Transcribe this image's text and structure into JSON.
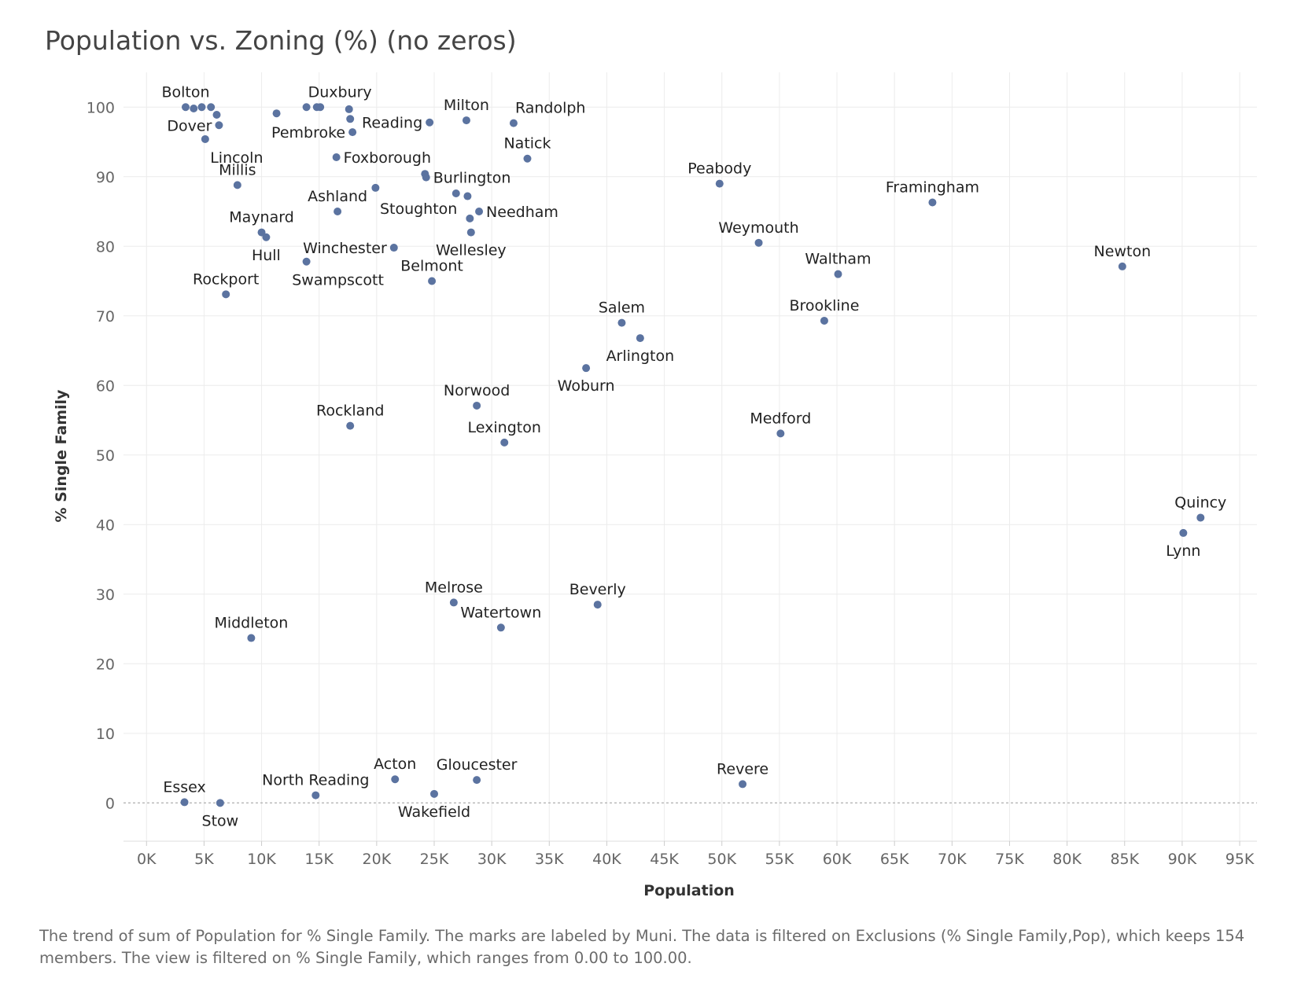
{
  "chart_data": {
    "type": "scatter",
    "title": "Population vs. Zoning (%) (no zeros)",
    "xlabel": "Population",
    "ylabel": "% Single Family",
    "xlim": [
      -2000,
      96500
    ],
    "ylim": [
      -5.5,
      105
    ],
    "x_ticks": [
      0,
      5000,
      10000,
      15000,
      20000,
      25000,
      30000,
      35000,
      40000,
      45000,
      50000,
      55000,
      60000,
      65000,
      70000,
      75000,
      80000,
      85000,
      90000,
      95000
    ],
    "x_tick_labels": [
      "0K",
      "5K",
      "10K",
      "15K",
      "20K",
      "25K",
      "30K",
      "35K",
      "40K",
      "45K",
      "50K",
      "55K",
      "60K",
      "65K",
      "70K",
      "75K",
      "80K",
      "85K",
      "90K",
      "95K"
    ],
    "y_ticks": [
      0,
      10,
      20,
      30,
      40,
      50,
      60,
      70,
      80,
      90,
      100
    ],
    "y_tick_labels": [
      "0",
      "10",
      "20",
      "30",
      "40",
      "50",
      "60",
      "70",
      "80",
      "90",
      "100"
    ],
    "grid": true,
    "zero_line": "dotted",
    "marker_color": "#5b73a0",
    "points": [
      {
        "x": 3400,
        "y": 100,
        "label": "Bolton",
        "anchor": "n"
      },
      {
        "x": 4100,
        "y": 99.8,
        "label": "",
        "anchor": ""
      },
      {
        "x": 4800,
        "y": 100,
        "label": "",
        "anchor": ""
      },
      {
        "x": 5600,
        "y": 100,
        "label": "",
        "anchor": ""
      },
      {
        "x": 6100,
        "y": 98.9,
        "label": "",
        "anchor": ""
      },
      {
        "x": 6300,
        "y": 97.4,
        "label": "Dover",
        "anchor": "w"
      },
      {
        "x": 5100,
        "y": 95.4,
        "label": "Lincoln",
        "anchor": "se"
      },
      {
        "x": 11300,
        "y": 99.1,
        "label": "",
        "anchor": ""
      },
      {
        "x": 13900,
        "y": 100,
        "label": "Duxbury",
        "anchor": "ne"
      },
      {
        "x": 14800,
        "y": 100,
        "label": "",
        "anchor": ""
      },
      {
        "x": 15100,
        "y": 100,
        "label": "",
        "anchor": ""
      },
      {
        "x": 17600,
        "y": 99.7,
        "label": "",
        "anchor": ""
      },
      {
        "x": 17700,
        "y": 98.3,
        "label": "",
        "anchor": ""
      },
      {
        "x": 17900,
        "y": 96.4,
        "label": "Pembroke",
        "anchor": "w"
      },
      {
        "x": 24600,
        "y": 97.8,
        "label": "Reading",
        "anchor": "w"
      },
      {
        "x": 27800,
        "y": 98.1,
        "label": "Milton",
        "anchor": "n"
      },
      {
        "x": 31900,
        "y": 97.7,
        "label": "Randolph",
        "anchor": "ne"
      },
      {
        "x": 16500,
        "y": 92.8,
        "label": "Foxborough",
        "anchor": "e"
      },
      {
        "x": 33100,
        "y": 92.6,
        "label": "Natick",
        "anchor": "n"
      },
      {
        "x": 7900,
        "y": 88.8,
        "label": "Millis",
        "anchor": "n"
      },
      {
        "x": 19900,
        "y": 88.4,
        "label": "",
        "anchor": ""
      },
      {
        "x": 24200,
        "y": 90.4,
        "label": "",
        "anchor": ""
      },
      {
        "x": 24300,
        "y": 89.9,
        "label": "Burlington",
        "anchor": "e"
      },
      {
        "x": 26900,
        "y": 87.6,
        "label": "",
        "anchor": ""
      },
      {
        "x": 27900,
        "y": 87.2,
        "label": "",
        "anchor": ""
      },
      {
        "x": 16600,
        "y": 85.0,
        "label": "Ashland",
        "anchor": "n"
      },
      {
        "x": 28100,
        "y": 84.0,
        "label": "Stoughton",
        "anchor": "nw"
      },
      {
        "x": 28900,
        "y": 85.0,
        "label": "Needham",
        "anchor": "e"
      },
      {
        "x": 49800,
        "y": 89.0,
        "label": "Peabody",
        "anchor": "n"
      },
      {
        "x": 68300,
        "y": 86.3,
        "label": "Framingham",
        "anchor": "n"
      },
      {
        "x": 10000,
        "y": 82.0,
        "label": "Maynard",
        "anchor": "n"
      },
      {
        "x": 10400,
        "y": 81.3,
        "label": "Hull",
        "anchor": "s"
      },
      {
        "x": 21500,
        "y": 79.8,
        "label": "Winchester",
        "anchor": "w"
      },
      {
        "x": 13900,
        "y": 77.8,
        "label": "Swampscott",
        "anchor": "se"
      },
      {
        "x": 28200,
        "y": 82.0,
        "label": "Wellesley",
        "anchor": "s"
      },
      {
        "x": 53200,
        "y": 80.5,
        "label": "Weymouth",
        "anchor": "n"
      },
      {
        "x": 84800,
        "y": 77.1,
        "label": "Newton",
        "anchor": "n"
      },
      {
        "x": 24800,
        "y": 75.0,
        "label": "Belmont",
        "anchor": "n"
      },
      {
        "x": 60100,
        "y": 76.0,
        "label": "Waltham",
        "anchor": "n"
      },
      {
        "x": 6900,
        "y": 73.1,
        "label": "Rockport",
        "anchor": "n"
      },
      {
        "x": 41300,
        "y": 69.0,
        "label": "Salem",
        "anchor": "n"
      },
      {
        "x": 58900,
        "y": 69.3,
        "label": "Brookline",
        "anchor": "n"
      },
      {
        "x": 42900,
        "y": 66.8,
        "label": "Arlington",
        "anchor": "s"
      },
      {
        "x": 38200,
        "y": 62.5,
        "label": "Woburn",
        "anchor": "s"
      },
      {
        "x": 28700,
        "y": 57.1,
        "label": "Norwood",
        "anchor": "n"
      },
      {
        "x": 17700,
        "y": 54.2,
        "label": "Rockland",
        "anchor": "n"
      },
      {
        "x": 31100,
        "y": 51.8,
        "label": "Lexington",
        "anchor": "n"
      },
      {
        "x": 55100,
        "y": 53.1,
        "label": "Medford",
        "anchor": "n"
      },
      {
        "x": 91600,
        "y": 41.0,
        "label": "Quincy",
        "anchor": "n"
      },
      {
        "x": 90100,
        "y": 38.8,
        "label": "Lynn",
        "anchor": "s"
      },
      {
        "x": 26700,
        "y": 28.8,
        "label": "Melrose",
        "anchor": "n"
      },
      {
        "x": 30800,
        "y": 25.2,
        "label": "Watertown",
        "anchor": "n"
      },
      {
        "x": 39200,
        "y": 28.5,
        "label": "Beverly",
        "anchor": "n"
      },
      {
        "x": 9100,
        "y": 23.7,
        "label": "Middleton",
        "anchor": "n"
      },
      {
        "x": 21600,
        "y": 3.4,
        "label": "Acton",
        "anchor": "n"
      },
      {
        "x": 28700,
        "y": 3.3,
        "label": "Gloucester",
        "anchor": "n"
      },
      {
        "x": 51800,
        "y": 2.7,
        "label": "Revere",
        "anchor": "n"
      },
      {
        "x": 14700,
        "y": 1.1,
        "label": "North Reading",
        "anchor": "n"
      },
      {
        "x": 25000,
        "y": 1.3,
        "label": "Wakefield",
        "anchor": "s"
      },
      {
        "x": 3300,
        "y": 0.1,
        "label": "Essex",
        "anchor": "n"
      },
      {
        "x": 6400,
        "y": 0.0,
        "label": "Stow",
        "anchor": "s"
      }
    ],
    "caption": "The trend of sum of Population for % Single Family.  The marks are labeled by Muni. The data is filtered on Exclusions (% Single Family,Pop), which keeps 154 members. The view is filtered on % Single Family, which ranges from 0.00 to 100.00."
  }
}
